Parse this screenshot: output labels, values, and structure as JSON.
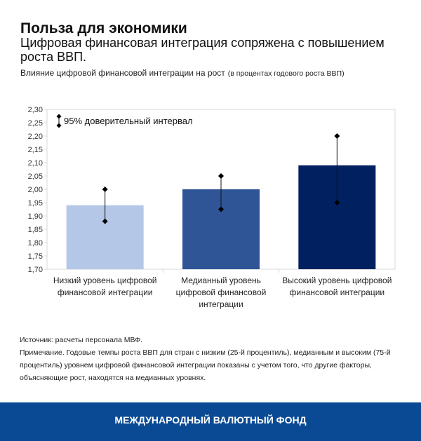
{
  "header": {
    "title": "Польза для экономики",
    "subtitle": "Цифровая финансовая интеграция сопряжена с повышением роста ВВП.",
    "chart_title": "Влияние цифровой финансовой интеграции на рост",
    "chart_unit": "(в процентах годового роста ВВП)"
  },
  "chart_data": {
    "type": "bar",
    "ylim": [
      1.7,
      2.3
    ],
    "yticks": [
      "1,70",
      "1,75",
      "1,80",
      "1,85",
      "1,90",
      "1,95",
      "2,00",
      "2,05",
      "2,10",
      "2,15",
      "2,20",
      "2,25",
      "2,30"
    ],
    "categories": [
      [
        "Низкий уровень цифровой",
        "финансовой интеграции"
      ],
      [
        "Медианный уровень",
        "цифровой финансовой",
        "интеграции"
      ],
      [
        "Высокий уровень цифровой",
        "финансовой интеграции"
      ]
    ],
    "values": [
      1.94,
      2.0,
      2.09
    ],
    "ci_low": [
      1.88,
      1.925,
      1.95
    ],
    "ci_high": [
      2.0,
      2.05,
      2.2
    ],
    "colors": [
      "#b4c7e7",
      "#2f5597",
      "#002060"
    ],
    "legend": "95% доверительный интервал",
    "legend_placement": "top-left",
    "grid": false
  },
  "notes": {
    "source": "Источник: расчеты персонала МВФ.",
    "note": "Примечание. Годовые темпы роста ВВП для стран с низким (25-й процентиль), медианным и высоким (75-й процентиль) уровнем цифровой финансовой интеграции показаны с учетом того, что другие факторы, объясняющие рост, находятся на медианных уровнях."
  },
  "footer": {
    "label": "МЕЖДУНАРОДНЫЙ ВАЛЮТНЫЙ ФОНД"
  }
}
